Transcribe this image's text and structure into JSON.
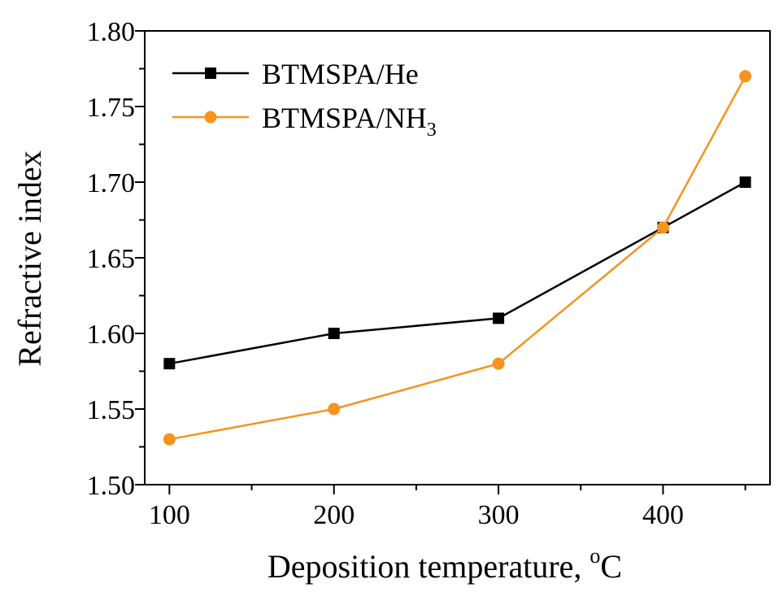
{
  "chart_data": {
    "type": "line",
    "title": "",
    "xlabel_text": "Deposition temperature, ",
    "xlabel_unit_sup": "o",
    "xlabel_unit": "C",
    "ylabel": "Refractive index",
    "xlim": [
      85,
      465
    ],
    "ylim": [
      1.5,
      1.8
    ],
    "x_ticks": [
      100,
      200,
      300,
      400
    ],
    "x_tick_labels": [
      "100",
      "200",
      "300",
      "400"
    ],
    "x_minor_ticks": [
      150,
      250,
      350,
      450
    ],
    "y_ticks": [
      1.5,
      1.55,
      1.6,
      1.65,
      1.7,
      1.75,
      1.8
    ],
    "y_tick_labels": [
      "1.50",
      "1.55",
      "1.60",
      "1.65",
      "1.70",
      "1.75",
      "1.80"
    ],
    "y_minor_ticks": [
      1.525,
      1.575,
      1.625,
      1.675,
      1.725,
      1.775
    ],
    "grid": false,
    "legend_position": "top-left",
    "series": [
      {
        "name": "BTMSPA/He",
        "legend_main": "BTMSPA/He",
        "legend_sub": "",
        "color": "#000000",
        "marker": "square",
        "x": [
          100,
          200,
          300,
          400,
          450
        ],
        "y": [
          1.58,
          1.6,
          1.61,
          1.67,
          1.7
        ]
      },
      {
        "name": "BTMSPA/NH3",
        "legend_main": "BTMSPA/NH",
        "legend_sub": "3",
        "color": "#F7931E",
        "marker": "circle",
        "x": [
          100,
          200,
          300,
          400,
          450
        ],
        "y": [
          1.53,
          1.55,
          1.58,
          1.67,
          1.77
        ]
      }
    ]
  }
}
